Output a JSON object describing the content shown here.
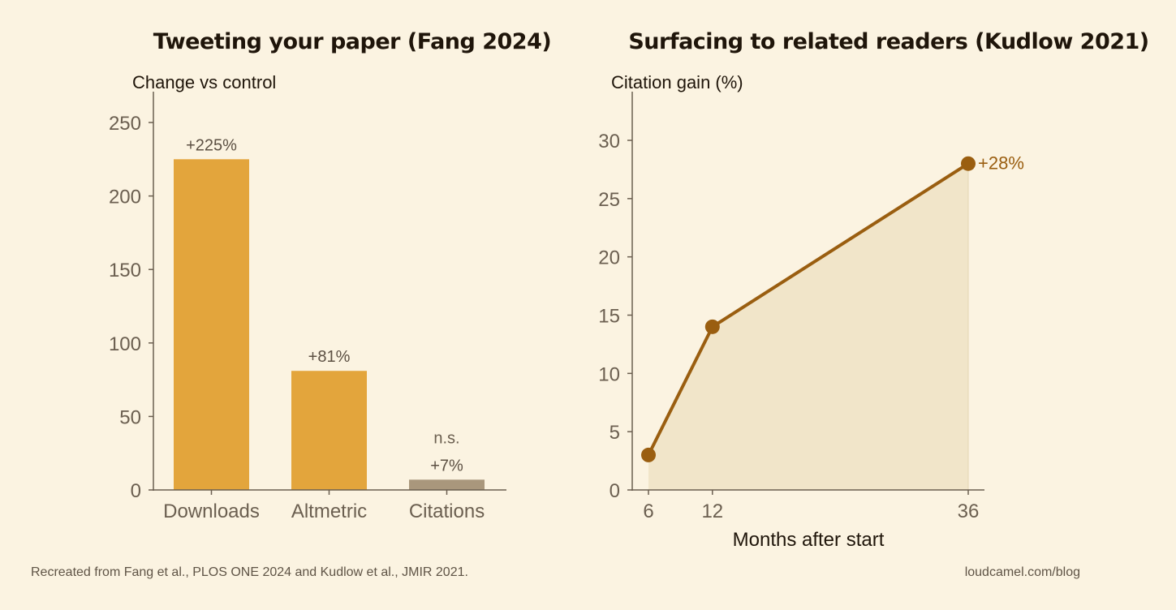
{
  "colors": {
    "background": "#fbf3e1",
    "bar_significant": "#e3a53c",
    "bar_ns": "#a9977c",
    "line": "#9a5e10",
    "area": "#f1e5c9",
    "axis": "#6b5f50"
  },
  "chart_data": [
    {
      "type": "bar",
      "title": "Tweeting your paper (Fang 2024)",
      "ylabel": "Change vs control",
      "xlabel": "",
      "categories": [
        "Downloads",
        "Altmetric",
        "Citations"
      ],
      "values": [
        225,
        81,
        7
      ],
      "data_labels": [
        "+225%",
        "+81%",
        "+7%"
      ],
      "annotations": [
        "",
        "",
        "n.s."
      ],
      "significant": [
        true,
        true,
        false
      ],
      "ylim": [
        0,
        270
      ],
      "yticks": [
        0,
        50,
        100,
        150,
        200,
        250
      ],
      "grid": false
    },
    {
      "type": "area",
      "title": "Surfacing to related readers (Kudlow 2021)",
      "ylabel": "Citation gain (%)",
      "xlabel": "Months after start",
      "x": [
        6,
        12,
        36
      ],
      "values": [
        3,
        14,
        28
      ],
      "end_label": "+28%",
      "xlim": [
        6,
        36
      ],
      "ylim": [
        0,
        34
      ],
      "xticks": [
        6,
        12,
        36
      ],
      "yticks": [
        0,
        5,
        10,
        15,
        20,
        25,
        30
      ],
      "grid": false
    }
  ],
  "footer": {
    "source": "Recreated from Fang et al., PLOS ONE 2024 and Kudlow et al., JMIR 2021.",
    "site": "loudcamel.com/blog"
  }
}
